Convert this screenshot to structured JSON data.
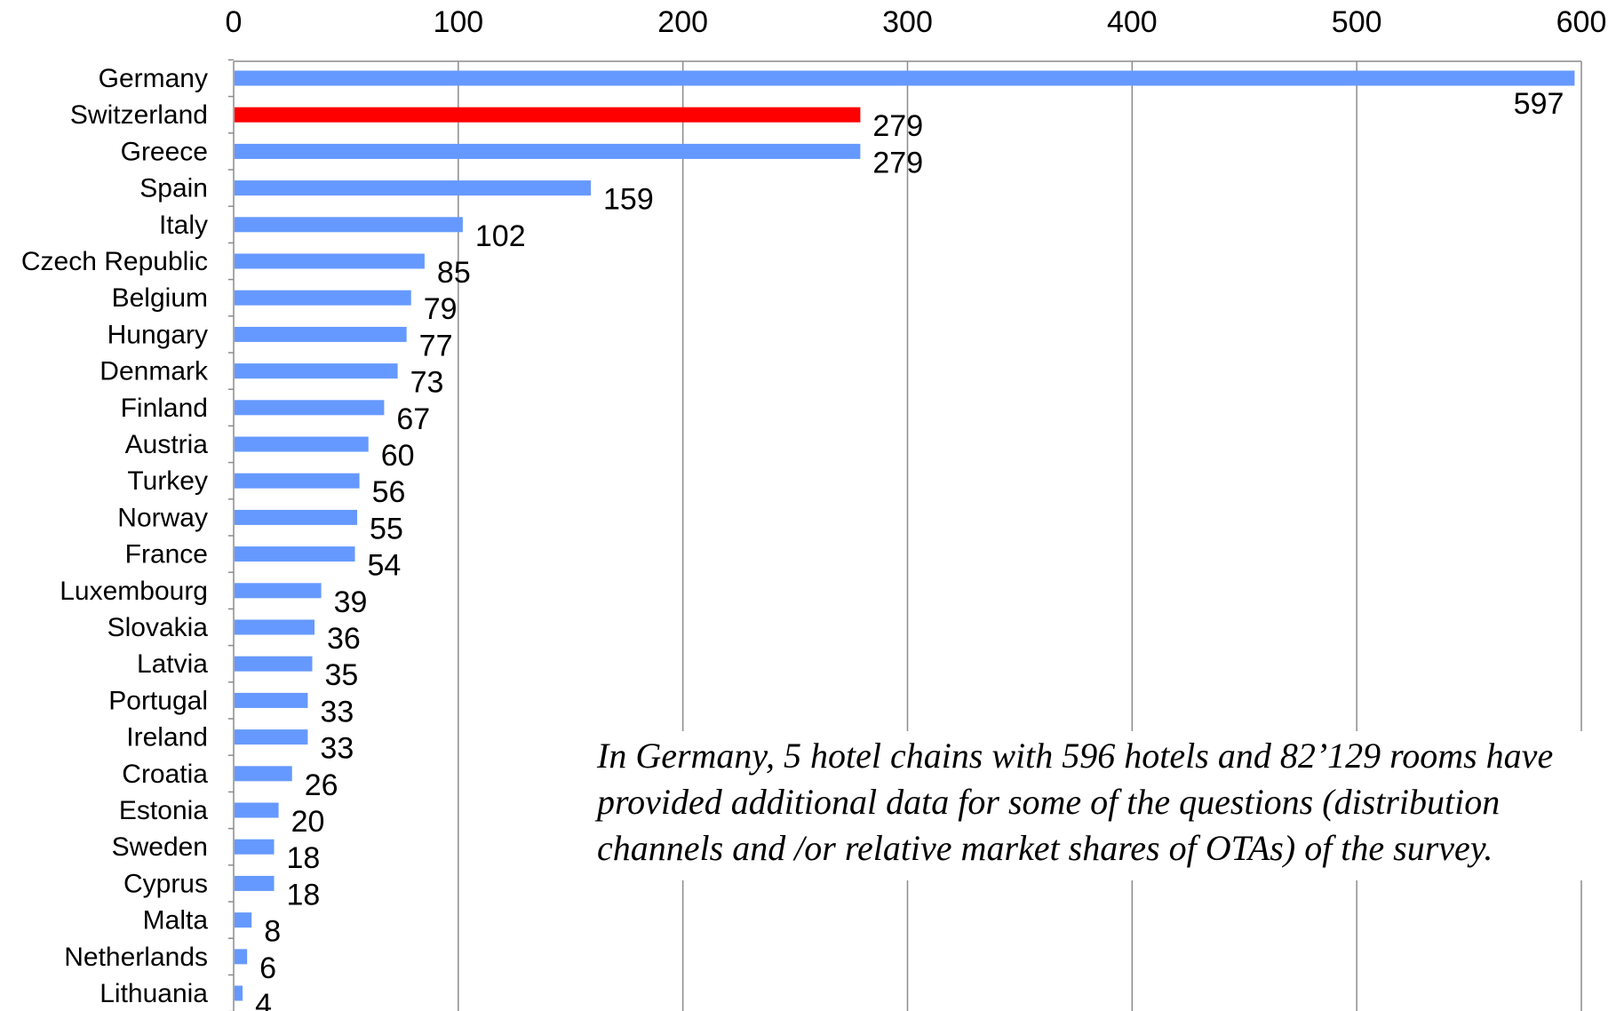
{
  "chart_data": {
    "type": "bar",
    "orientation": "horizontal",
    "categories": [
      "Germany",
      "Switzerland",
      "Greece",
      "Spain",
      "Italy",
      "Czech Republic",
      "Belgium",
      "Hungary",
      "Denmark",
      "Finland",
      "Austria",
      "Turkey",
      "Norway",
      "France",
      "Luxembourg",
      "Slovakia",
      "Latvia",
      "Portugal",
      "Ireland",
      "Croatia",
      "Estonia",
      "Sweden",
      "Cyprus",
      "Malta",
      "Netherlands",
      "Lithuania"
    ],
    "values": [
      597,
      279,
      279,
      159,
      102,
      85,
      79,
      77,
      73,
      67,
      60,
      56,
      55,
      54,
      39,
      36,
      35,
      33,
      33,
      26,
      20,
      18,
      18,
      8,
      6,
      4
    ],
    "xlim": [
      0,
      600
    ],
    "xticks": [
      0,
      100,
      200,
      300,
      400,
      500,
      600
    ],
    "x_axis_position": "top",
    "grid": "vertical",
    "colors": {
      "default": "#6699ff",
      "highlight": "#ff0000"
    },
    "highlight_category": "Switzerland",
    "data_labels": true
  },
  "annotation": "In Germany, 5 hotel chains with 596 hotels and 82’129 rooms have provided additional data for some of the questions (distribution channels and /or relative market shares of OTAs) of the survey."
}
